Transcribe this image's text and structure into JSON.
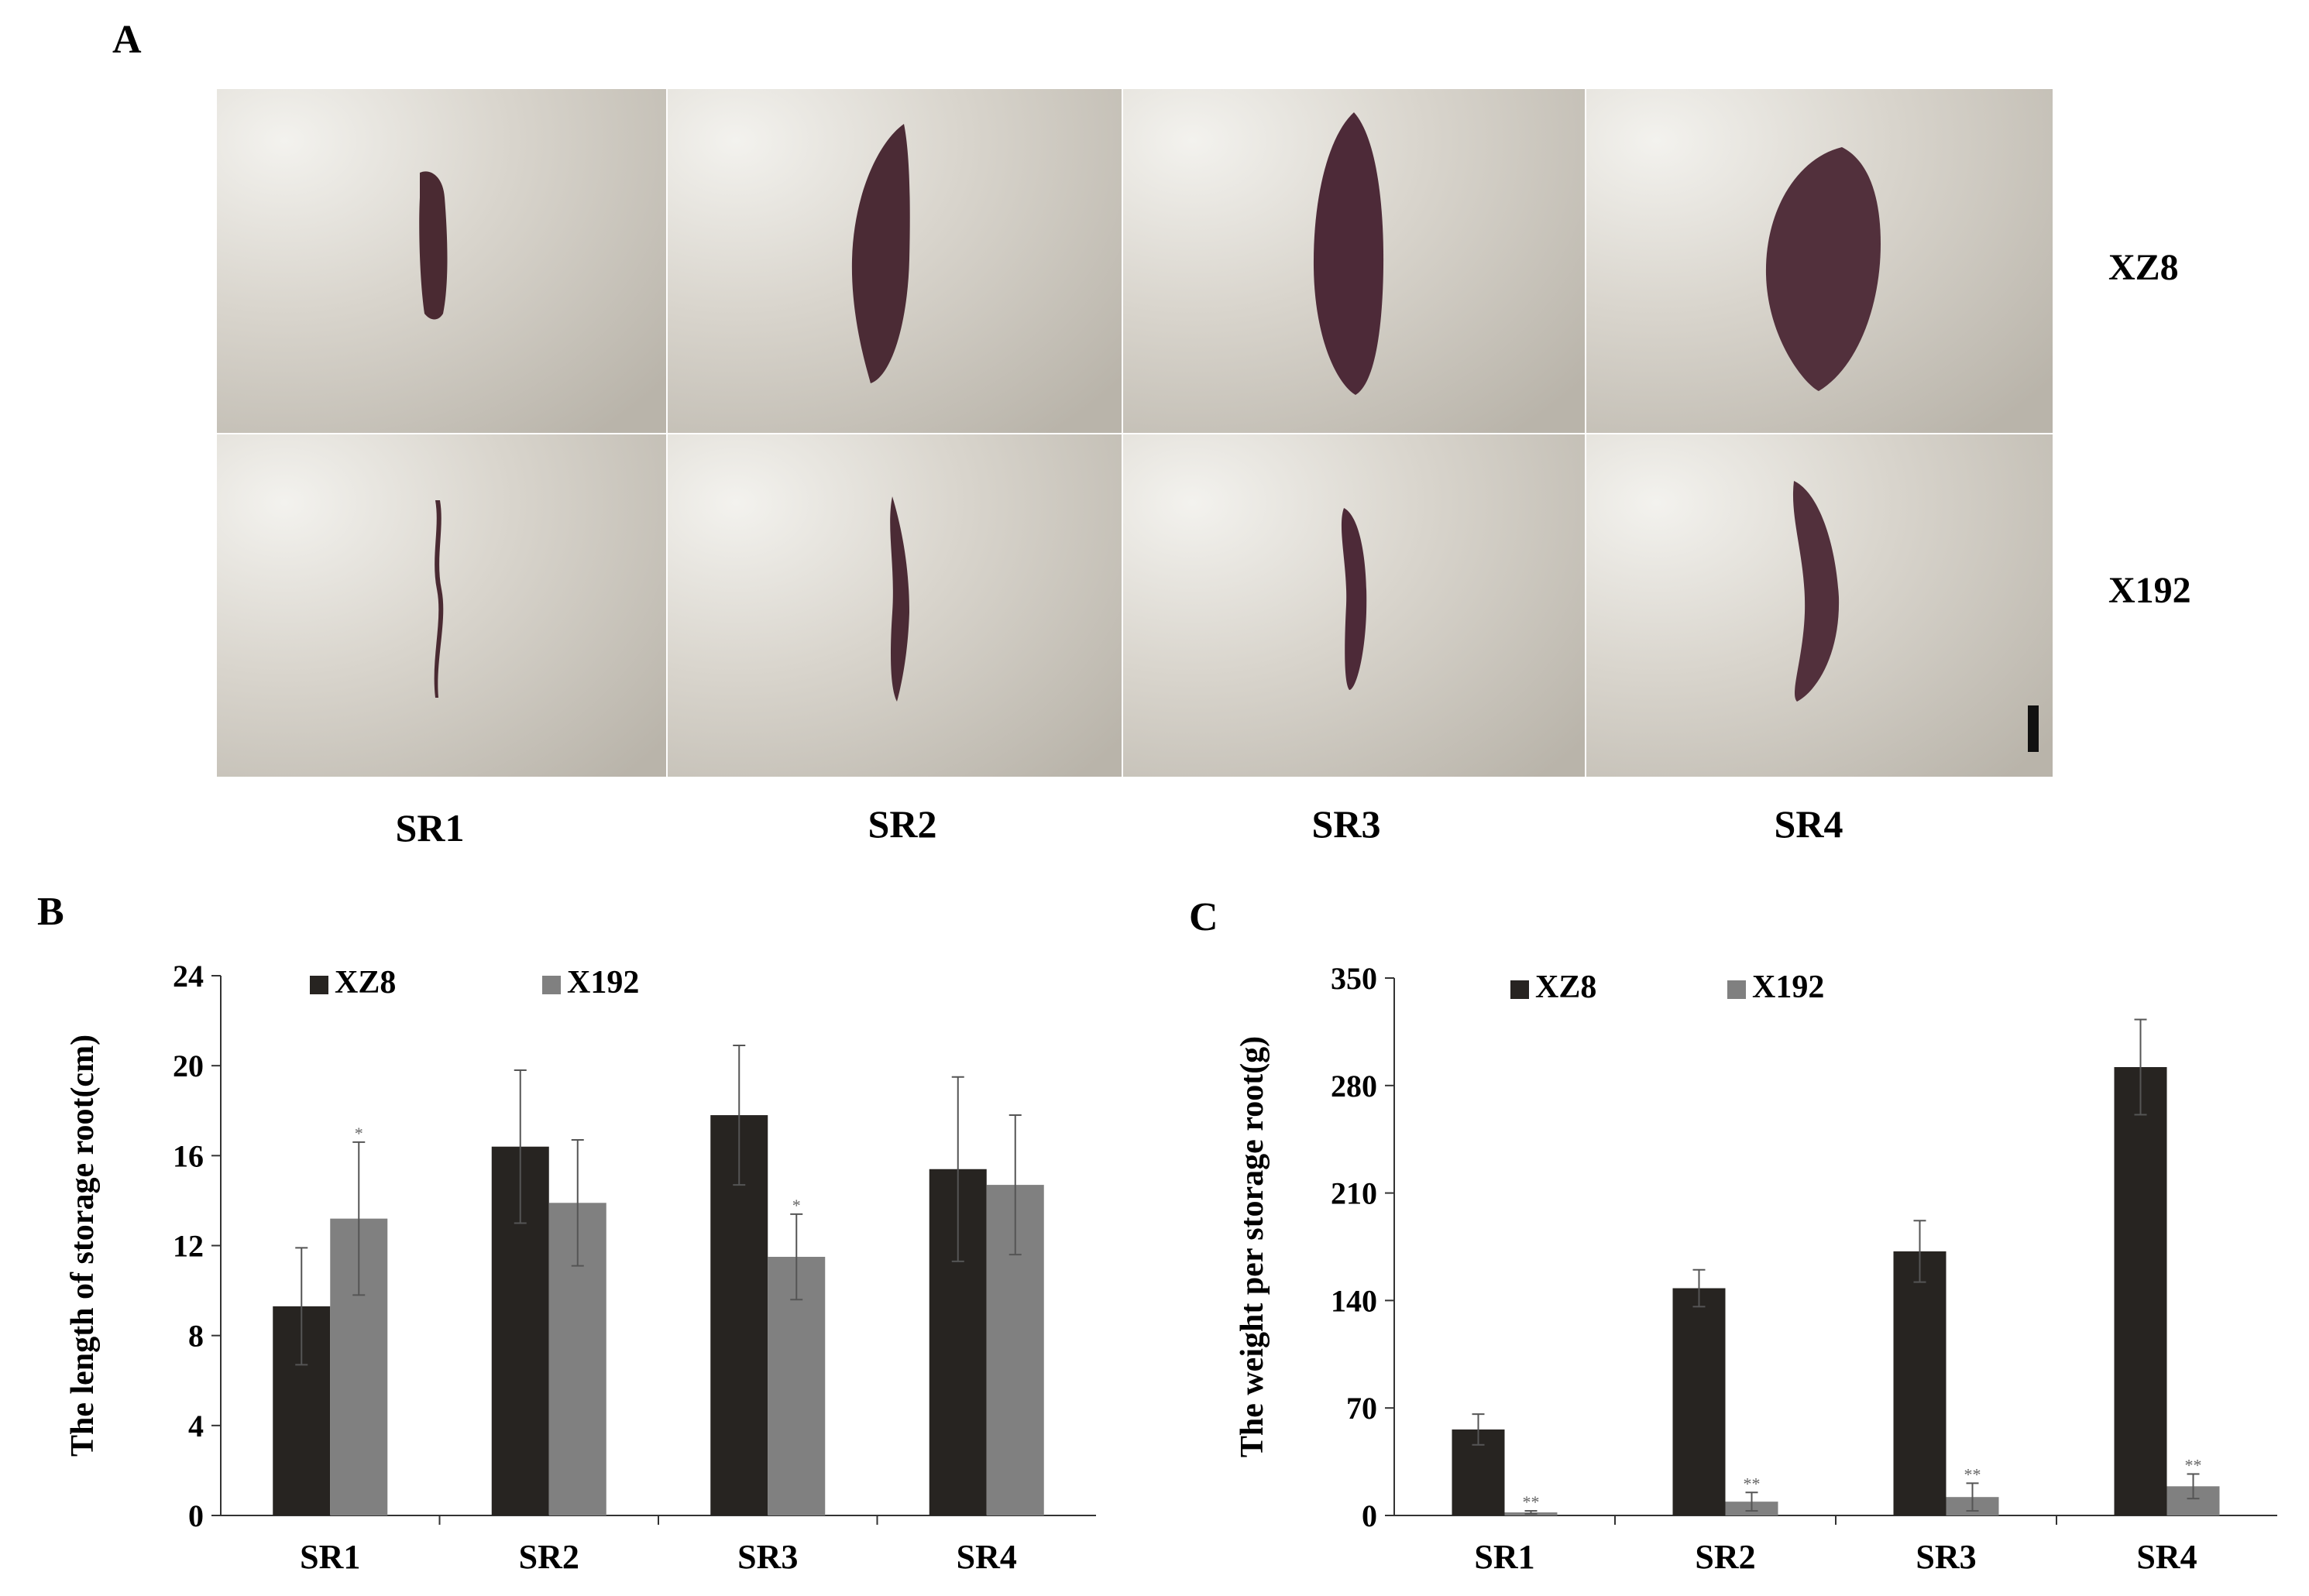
{
  "panels": {
    "a": "A",
    "b": "B",
    "c": "C"
  },
  "photo_panel": {
    "row_labels": [
      "XZ8",
      "X192"
    ],
    "column_labels": [
      "SR1",
      "SR2",
      "SR3",
      "SR4"
    ]
  },
  "chart_data": [
    {
      "type": "bar",
      "panel": "B",
      "title": "",
      "categories": [
        "SR1",
        "SR2",
        "SR3",
        "SR4"
      ],
      "series": [
        {
          "name": "XZ8",
          "values": [
            9.3,
            16.4,
            17.8,
            15.4
          ],
          "errors": [
            2.6,
            3.4,
            3.1,
            4.1
          ],
          "marks": [
            "",
            "",
            "",
            ""
          ],
          "color": "#272421"
        },
        {
          "name": "X192",
          "values": [
            13.2,
            13.9,
            11.5,
            14.7
          ],
          "errors": [
            3.4,
            2.8,
            1.9,
            3.1
          ],
          "marks": [
            "*",
            "",
            "*",
            ""
          ],
          "color": "#808080"
        }
      ],
      "xlabel": "",
      "ylabel": "The length of storage root(cm)",
      "ylim": [
        0,
        24
      ],
      "yticks": [
        0,
        4,
        8,
        12,
        16,
        20,
        24
      ],
      "ytick_labels": [
        "0",
        "4",
        "8",
        "12",
        "16",
        "20",
        "24"
      ],
      "legend": "top-left",
      "grid": false
    },
    {
      "type": "bar",
      "panel": "C",
      "title": "",
      "categories": [
        "SR1",
        "SR2",
        "SR3",
        "SR4"
      ],
      "series": [
        {
          "name": "XZ8",
          "values": [
            56,
            148,
            172,
            292
          ],
          "errors": [
            10,
            12,
            20,
            31
          ],
          "marks": [
            "",
            "",
            "",
            ""
          ],
          "color": "#272421"
        },
        {
          "name": "X192",
          "values": [
            2,
            9,
            12,
            19
          ],
          "errors": [
            1,
            6,
            9,
            8
          ],
          "marks": [
            "**",
            "**",
            "**",
            "**"
          ],
          "color": "#808080"
        }
      ],
      "xlabel": "",
      "ylabel": "The weight  per storage root(g)",
      "ylim": [
        0,
        350
      ],
      "yticks": [
        0,
        70,
        140,
        210,
        280,
        350
      ],
      "ytick_labels": [
        "0",
        "70",
        "140",
        "210",
        "280",
        "350"
      ],
      "legend": "top-left",
      "grid": false
    }
  ]
}
